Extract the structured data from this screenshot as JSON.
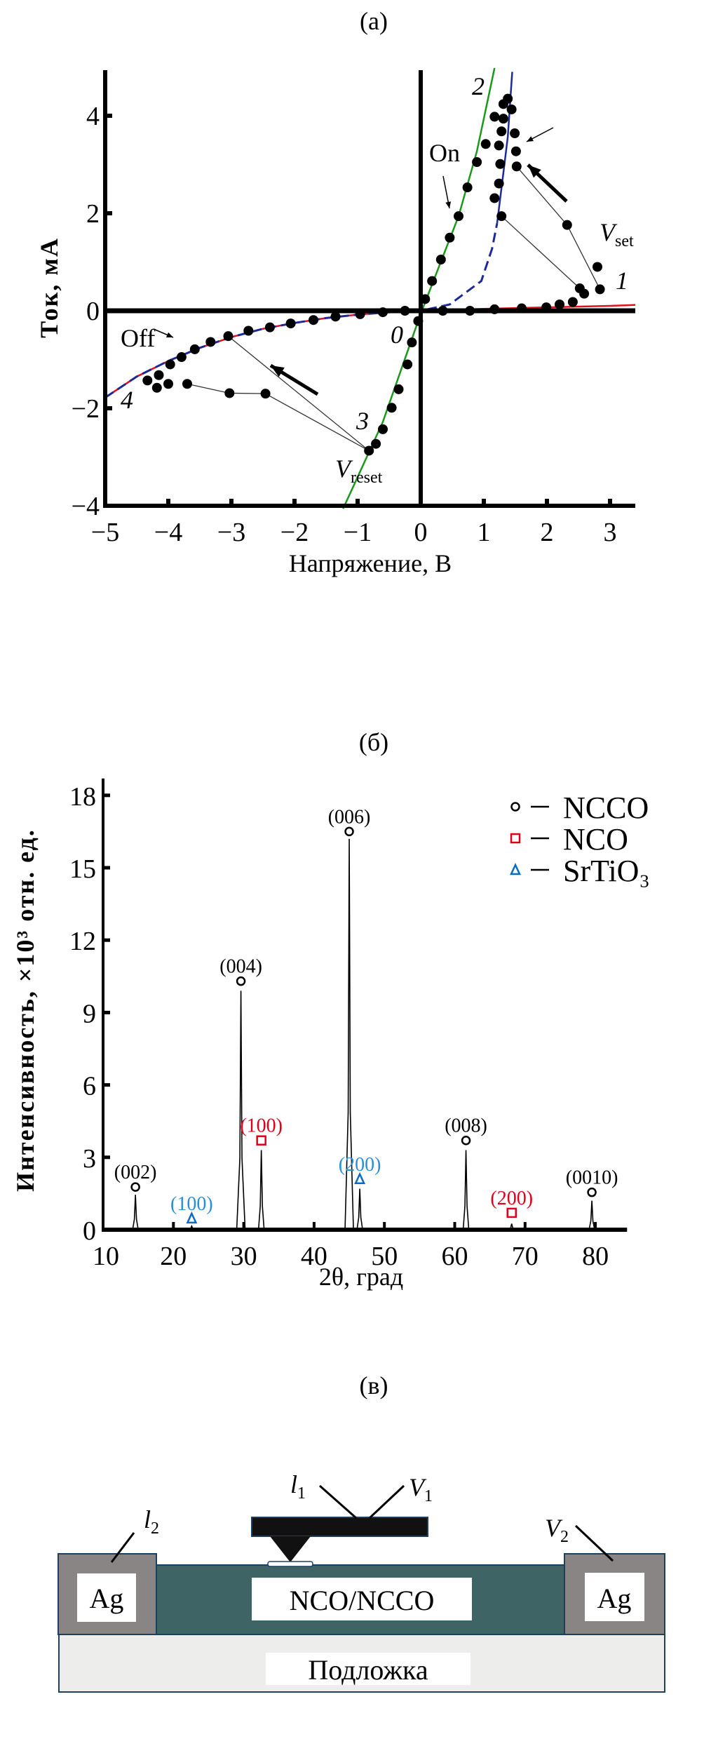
{
  "panels": {
    "a": "(a)",
    "b": "(б)",
    "c": "(в)"
  },
  "chart_data": [
    {
      "type": "scatter",
      "title": "(a)",
      "xlabel": "Напряжение, В",
      "ylabel": "Ток, мА",
      "xlim": [
        -5,
        3.4
      ],
      "ylim": [
        -4,
        5
      ],
      "xticks": [
        -5,
        -4,
        -3,
        -2,
        -1,
        0,
        1,
        2,
        3
      ],
      "xtick_labels": [
        "−5",
        "−4",
        "−3",
        "−2",
        "−1",
        "0",
        "1",
        "2",
        "3"
      ],
      "yticks": [
        -4,
        -2,
        0,
        2,
        4
      ],
      "ytick_labels": [
        "−4",
        "−2",
        "0",
        "2",
        "4"
      ],
      "series": [
        {
          "name": "measured",
          "color": "#000000",
          "points": [
            [
              0.35,
              0
            ],
            [
              0.78,
              0
            ],
            [
              1.17,
              0.03
            ],
            [
              1.6,
              0.05
            ],
            [
              1.99,
              0.07
            ],
            [
              2.2,
              0.13
            ],
            [
              2.41,
              0.18
            ],
            [
              2.59,
              0.35
            ],
            [
              2.52,
              0.46
            ],
            [
              2.84,
              0.44
            ],
            [
              2.8,
              0.9
            ],
            [
              2.32,
              1.76
            ],
            [
              1.52,
              2.96
            ],
            [
              1.51,
              3.27
            ],
            [
              1.49,
              3.64
            ],
            [
              1.44,
              4.13
            ],
            [
              1.38,
              4.35
            ],
            [
              1.31,
              4.24
            ],
            [
              1.31,
              3.94
            ],
            [
              1.28,
              3.68
            ],
            [
              1.24,
              3.39
            ],
            [
              1.26,
              3.01
            ],
            [
              1.24,
              2.61
            ],
            [
              1.17,
              2.31
            ],
            [
              1.28,
              1.94
            ],
            [
              1.17,
              3.98
            ],
            [
              1.03,
              3.42
            ],
            [
              0.89,
              3.05
            ],
            [
              0.74,
              2.53
            ],
            [
              0.6,
              1.94
            ],
            [
              0.46,
              1.5
            ],
            [
              0.32,
              1.05
            ],
            [
              0.18,
              0.61
            ],
            [
              0.07,
              0.24
            ],
            [
              -0.04,
              -0.21
            ],
            [
              -0.14,
              -0.65
            ],
            [
              -0.21,
              -1.1
            ],
            [
              -0.35,
              -1.61
            ],
            [
              -0.46,
              -1.99
            ],
            [
              -0.6,
              -2.43
            ],
            [
              -0.71,
              -2.73
            ],
            [
              -0.82,
              -2.87
            ],
            [
              -2.46,
              -1.7
            ],
            [
              -3.03,
              -1.69
            ],
            [
              -3.7,
              -1.5
            ],
            [
              -4.0,
              -1.5
            ],
            [
              -4.18,
              -1.58
            ],
            [
              -4.33,
              -1.43
            ],
            [
              -4.15,
              -1.32
            ],
            [
              -3.97,
              -1.1
            ],
            [
              -3.79,
              -0.95
            ],
            [
              -3.58,
              -0.79
            ],
            [
              -3.33,
              -0.64
            ],
            [
              -3.05,
              -0.52
            ],
            [
              -2.73,
              -0.41
            ],
            [
              -2.39,
              -0.34
            ],
            [
              -2.06,
              -0.26
            ],
            [
              -1.7,
              -0.19
            ],
            [
              -1.35,
              -0.12
            ],
            [
              -0.96,
              -0.07
            ],
            [
              -0.6,
              -0.03
            ],
            [
              -0.25,
              0
            ]
          ]
        },
        {
          "name": "fit-on",
          "color": "#1a9a1a",
          "points": [
            [
              -1.23,
              -4.06
            ],
            [
              -0.6,
              -2.28
            ],
            [
              0,
              -0.06
            ],
            [
              0.6,
              1.94
            ],
            [
              0.89,
              3.27
            ],
            [
              1.17,
              4.98
            ]
          ]
        },
        {
          "name": "fit-off-red",
          "color": "#e0101e",
          "points": [
            [
              -5,
              -1.78
            ],
            [
              -4.5,
              -1.35
            ],
            [
              -4,
              -1.03
            ],
            [
              -3.5,
              -0.76
            ],
            [
              -3,
              -0.54
            ],
            [
              -2.5,
              -0.37
            ],
            [
              -2,
              -0.25
            ],
            [
              -1.5,
              -0.15
            ],
            [
              -1,
              -0.08
            ],
            [
              -0.5,
              -0.03
            ],
            [
              0,
              0
            ],
            [
              0.5,
              0.02
            ],
            [
              1,
              0.04
            ],
            [
              2,
              0.07
            ],
            [
              3,
              0.1
            ],
            [
              3.4,
              0.12
            ]
          ]
        },
        {
          "name": "fit-off-blue-dashed",
          "color": "#1c2a9a",
          "points": [
            [
              -5,
              -1.78
            ],
            [
              -4.5,
              -1.35
            ],
            [
              -4,
              -1.03
            ],
            [
              -3.5,
              -0.76
            ],
            [
              -3,
              -0.54
            ],
            [
              -2.5,
              -0.37
            ],
            [
              -2,
              -0.25
            ],
            [
              -1.5,
              -0.15
            ],
            [
              -1,
              -0.08
            ],
            [
              -0.5,
              -0.03
            ],
            [
              0,
              0
            ],
            [
              0.46,
              0.13
            ],
            [
              0.96,
              0.61
            ],
            [
              1.13,
              1.27
            ],
            [
              1.21,
              1.79
            ]
          ]
        },
        {
          "name": "fit-set-blue",
          "color": "#1c2a9a",
          "points": [
            [
              1.21,
              1.79
            ],
            [
              1.31,
              2.83
            ],
            [
              1.38,
              3.57
            ],
            [
              1.45,
              4.9
            ]
          ]
        }
      ],
      "annotations": {
        "curve_1": "1",
        "curve_2": "2",
        "curve_3": "3",
        "curve_4": "4",
        "curve_0": "0",
        "on": "On",
        "off": "Off",
        "vset_main": "V",
        "vset_sub": "set",
        "vreset_main": "V",
        "vreset_sub": "reset"
      }
    },
    {
      "type": "bar",
      "title": "(б)",
      "xlabel": "2θ, град",
      "ylabel": "Интенсивность, ×10³ отн. ед.",
      "xlim": [
        10,
        84.5
      ],
      "ylim": [
        0,
        18.7
      ],
      "xticks": [
        10,
        20,
        30,
        40,
        50,
        60,
        70,
        80
      ],
      "xtick_labels": [
        "10",
        "20",
        "30",
        "40",
        "50",
        "60",
        "70",
        "80"
      ],
      "yticks": [
        0,
        3,
        6,
        9,
        12,
        15,
        18
      ],
      "ytick_labels": [
        "0",
        "3",
        "6",
        "9",
        "12",
        "15",
        "18"
      ],
      "legend": {
        "position": "top-right",
        "entries": [
          {
            "marker": "circle",
            "label": "NCCO",
            "color": "#000000"
          },
          {
            "marker": "square",
            "label": "NCO",
            "color": "#e0001b"
          },
          {
            "marker": "triangle",
            "label": "SrTiO₃",
            "color": "#0a6cc0"
          }
        ]
      },
      "phase_label_colors": {
        "NCCO": "#000000",
        "NCO": "#e0001b",
        "SrTiO3": "#2b8fd6"
      },
      "peaks": [
        {
          "hkl": "(002)",
          "phase": "NCCO",
          "two_theta": 14.6,
          "intensity": 1.45,
          "marker": 1.77
        },
        {
          "hkl": "(100)",
          "phase": "SrTiO3",
          "two_theta": 22.6,
          "intensity": 0.15,
          "marker": 0.47
        },
        {
          "hkl": "(004)",
          "phase": "NCCO",
          "two_theta": 29.6,
          "intensity": 9.9,
          "marker": 10.3
        },
        {
          "hkl": "(100)",
          "phase": "NCO",
          "two_theta": 32.5,
          "intensity": 3.3,
          "marker": 3.7
        },
        {
          "hkl": "(006)",
          "phase": "NCCO",
          "two_theta": 45.0,
          "intensity": 16.2,
          "marker": 16.5
        },
        {
          "hkl": "(200)",
          "phase": "SrTiO3",
          "two_theta": 46.5,
          "intensity": 1.7,
          "marker": 2.1
        },
        {
          "hkl": "(008)",
          "phase": "NCCO",
          "two_theta": 61.6,
          "intensity": 3.3,
          "marker": 3.7
        },
        {
          "hkl": "(200)",
          "phase": "NCO",
          "two_theta": 68.1,
          "intensity": 0.25,
          "marker": 0.7
        },
        {
          "hkl": "(0010)",
          "phase": "NCCO",
          "two_theta": 79.5,
          "intensity": 1.2,
          "marker": 1.55
        }
      ]
    }
  ],
  "diagram": {
    "l1_main": "l",
    "l1_sub": "1",
    "v1_main": "V",
    "v1_sub": "1",
    "l2_main": "l",
    "l2_sub": "2",
    "v2_main": "V",
    "v2_sub": "2",
    "ag_left": "Ag",
    "ag_right": "Ag",
    "film": "NCO/NCCO",
    "substrate": "Подложка",
    "colors": {
      "ag": "#8a8585",
      "film": "#3f6466",
      "border": "#1f3f5f",
      "substrate": "#ededeb",
      "cantilever": "#111111"
    }
  }
}
